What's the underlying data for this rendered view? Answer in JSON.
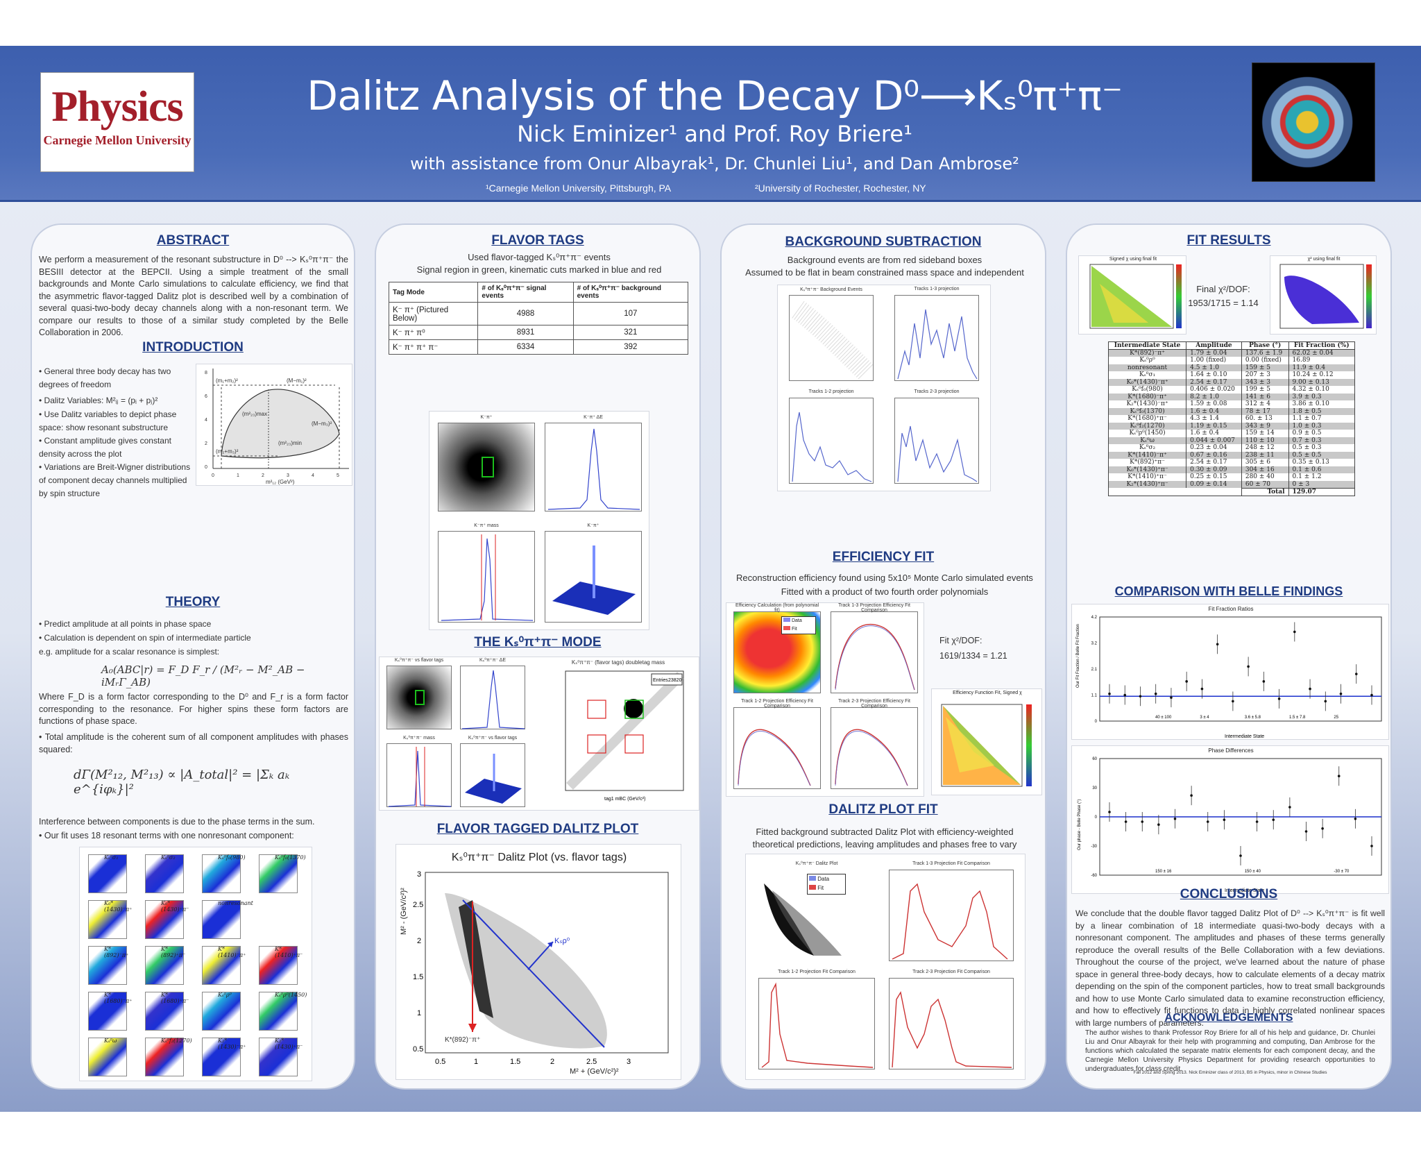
{
  "header": {
    "title": "Dalitz Analysis of the Decay D⁰⟶Kₛ⁰π⁺π⁻",
    "authors": "Nick Eminizer¹ and Prof. Roy Briere¹",
    "assistance": "with assistance from Onur Albayrak¹, Dr. Chunlei Liu¹, and Dan Ambrose²",
    "affil_1": "¹Carnegie Mellon University, Pittsburgh, PA",
    "affil_2": "²University of Rochester, Rochester, NY",
    "logo_word": "Physics",
    "logo_uni": "Carnegie Mellon University"
  },
  "abstract": {
    "title": "ABSTRACT",
    "text": "We perform a measurement of the resonant substructure in D⁰ --> Kₛ⁰π⁺π⁻ the BESIII detector at the BEPCII. Using a simple treatment of the small backgrounds and Monte Carlo simulations to calculate efficiency, we find that the asymmetric flavor-tagged Dalitz plot is described well by a combination of several quasi-two-body decay channels along with a non-resonant term. We compare our results to those of a similar study completed by the Belle Collaboration in 2006."
  },
  "introduction": {
    "title": "INTRODUCTION",
    "bullets": [
      "• General three body decay has two degrees of freedom",
      "• Dalitz Variables: M²ᵢⱼ = (pᵢ + pⱼ)²",
      "• Use Dalitz variables to depict phase space: show resonant substructure",
      "• Constant amplitude gives constant density across the plot",
      "• Variations are Breit-Wigner distributions of component decay channels multiplied by spin structure"
    ],
    "figure_labels": [
      "(m₁+m₂)²",
      "(M−m₁)²",
      "(M−m₃)²",
      "(m₂+m₃)²",
      "(m²₂₃)max",
      "(m²₂₃)min"
    ],
    "figure_xlabel": "m²₁₂ (GeV²)",
    "figure_ylabel": "m²₂₃ (GeV²)",
    "figure_xticks": [
      "0",
      "1",
      "2",
      "3",
      "4",
      "5"
    ],
    "figure_yticks": [
      "0",
      "2",
      "4",
      "6",
      "8"
    ]
  },
  "theory": {
    "title": "THEORY",
    "bullets": [
      "• Predict amplitude at all points in phase space",
      "• Calculation is dependent on spin of intermediate particle"
    ],
    "scalar_note": "e.g. amplitude for a scalar resonance is simplest:",
    "eq1": "A₀(ABC|r) = F_D F_r / (M²ᵣ − M²_AB − iMᵣΓ_AB)",
    "form_factor_note": "Where F_D is a form factor corresponding to the D⁰ and F_r is a form factor corresponding to the resonance. For higher spins these form factors are functions of phase space.",
    "total_note": "• Total amplitude is the coherent sum of all component amplitudes with phases squared:",
    "eq2": "dΓ(M²₁₂, M²₁₃) ∝ |A_total|² = |Σₖ aₖ e^{iφₖ}|²",
    "interference_note": "Interference between components is due to the phase terms in the sum.",
    "fit_note": "• Our fit uses 18 resonant terms with one nonresonant component:",
    "components": [
      "Kₛ⁰σ₁",
      "Kₛ⁰σ₂",
      "Kₛ⁰f₀(980)",
      "Kₛ⁰f₀(1370)",
      "K₀*(1430)⁻π⁺",
      "K₀*(1430)⁺π⁻",
      "nonresonant",
      "",
      "K*(892)⁻π⁺",
      "K*(892)⁺π⁻",
      "K*(1410)⁻π⁺",
      "K*(1410)⁺π⁻",
      "K*(1680)⁻π⁺",
      "K*(1680)⁺π⁻",
      "Kₛ⁰ρ⁰",
      "Kₛ⁰ρ⁰(1450)",
      "Kₛ⁰ω",
      "Kₛ⁰f₂(1270)",
      "K₂*(1430)⁻π⁺",
      "K₂*(1430)⁺π⁻"
    ]
  },
  "flavor_tags": {
    "title": "FLAVOR TAGS",
    "line1": "Used flavor-tagged Kₛ⁰π⁺π⁻ events",
    "line2": "Signal region in green, kinematic cuts marked in blue and red",
    "table_headers": [
      "Tag Mode",
      "# of Kₛ⁰π⁺π⁻ signal events",
      "# of Kₛ⁰π⁺π⁻ background events"
    ],
    "table_rows": [
      [
        "K⁻ π⁺ (Pictured Below)",
        "4988",
        "107"
      ],
      [
        "K⁻ π⁺ π⁰",
        "8931",
        "321"
      ],
      [
        "K⁻ π⁺ π⁺ π⁻",
        "6334",
        "392"
      ]
    ],
    "plot_titles": [
      "K⁻π⁺",
      "K⁻π⁺ ΔE",
      "K⁻π⁺ mass",
      "K⁻π⁺"
    ]
  },
  "ks_mode": {
    "title": "THE Kₛ⁰π⁺π⁻ MODE",
    "plot_titles": [
      "Kₛ⁰π⁺π⁻ vs flavor tags",
      "Kₛ⁰π⁺π⁻ ΔE",
      "Kₛ⁰π⁺π⁻ mass",
      "Kₛ⁰π⁺π⁻ vs flavor tags"
    ],
    "doubletag_title": "Kₛ⁰π⁺π⁻ (flavor tags) doubletag mass",
    "doubletag_xlabel": "tag1 mBC (GeV/c²)",
    "doubletag_ylabel": "tag2 mBC (GeV/c²)",
    "entries_label": "Entries",
    "entries_value": "23820",
    "xticks": [
      "1.83",
      "1.84",
      "1.85",
      "1.86",
      "1.87",
      "1.88",
      "1.89"
    ],
    "yticks": [
      "1.83",
      "1.84",
      "1.85",
      "1.86",
      "1.87",
      "1.88",
      "1.89"
    ]
  },
  "flavor_dalitz": {
    "title": "FLAVOR TAGGED DALITZ PLOT",
    "plot_title": "Kₛ⁰π⁺π⁻ Dalitz Plot (vs. flavor tags)",
    "xlabel": "M² + (GeV/c²)²",
    "ylabel": "M² - (GeV/c²)²",
    "xticks": [
      "0.5",
      "1",
      "1.5",
      "2",
      "2.5",
      "3"
    ],
    "yticks": [
      "0.5",
      "1",
      "1.5",
      "2",
      "2.5",
      "3"
    ],
    "label_ksrho": "Kₛρ⁰",
    "label_kstar": "K*(892)⁻π⁺"
  },
  "background": {
    "title": "BACKGROUND SUBTRACTION",
    "line1": "Background events are from red sideband boxes",
    "line2": "Assumed to be flat in beam constrained mass space and independent",
    "plot_titles": [
      "Kₛ⁰π⁺π⁻ Background Events",
      "Tracks 1-3 projection",
      "Tracks 1-2 projection",
      "Tracks 2-3 projection"
    ]
  },
  "efficiency": {
    "title": "EFFICIENCY FIT",
    "line1": "Reconstruction efficiency found using 5x10⁵ Monte Carlo simulated events",
    "line2": "Fitted with a product of two fourth order polynomials",
    "fit_chi": "Fit χ²/DOF:",
    "fit_value": "1619/1334 = 1.21",
    "plot_titles": [
      "Efficiency Calculation (from polynomial fit)",
      "Track 1-3 Projection Efficiency Fit Comparison",
      "Track 1-2 Projection Efficiency Fit Comparison",
      "Track 2-3 Projection Efficiency Fit Comparison",
      "Efficiency Function Fit, Signed χ"
    ],
    "legend": [
      "Data",
      "Fit"
    ]
  },
  "dalitz_fit": {
    "title": "DALITZ PLOT FIT",
    "line1": "Fitted background subtracted Dalitz Plot with efficiency-weighted",
    "line2": "theoretical predictions, leaving amplitudes and phases free to vary",
    "plot_titles": [
      "Kₛ⁰π⁺π⁻ Dalitz Plot",
      "Track 1-3 Projection Fit Comparison",
      "Track 1-2 Projection Fit Comparison",
      "Track 2-3 Projection Fit Comparison"
    ],
    "legend": [
      "Data",
      "Fit"
    ]
  },
  "fit_results": {
    "title": "FIT RESULTS",
    "plot_titles": [
      "Signed χ using final fit",
      "χ² using final fit"
    ],
    "chi_label": "Final χ²/DOF:",
    "chi_value": "1953/1715 = 1.14",
    "table_headers": [
      "Intermediate State",
      "Amplitude",
      "Phase (°)",
      "Fit Fraction (%)"
    ],
    "table_rows": [
      [
        "K*(892)⁻π⁺",
        "1.79 ± 0.04",
        "137.6 ± 1.9",
        "62.02 ± 0.04"
      ],
      [
        "Kₛ⁰ρ⁰",
        "1.00 (fixed)",
        "0.00 (fixed)",
        "16.89"
      ],
      [
        "nonresonant",
        "4.5 ± 1.0",
        "159 ± 5",
        "11.9 ± 0.4"
      ],
      [
        "Kₛ⁰σ₁",
        "1.64 ± 0.10",
        "207 ± 3",
        "10.24 ± 0.12"
      ],
      [
        "K₀*(1430)⁻π⁺",
        "2.54 ± 0.17",
        "343 ± 3",
        "9.00 ± 0.13"
      ],
      [
        "Kₛ⁰f₀(980)",
        "0.406 ± 0.020",
        "199 ± 5",
        "4.32 ± 0.10"
      ],
      [
        "K*(1680)⁻π⁺",
        "8.2 ± 1.0",
        "141 ± 6",
        "3.9 ± 0.3"
      ],
      [
        "K₂*(1430)⁻π⁺",
        "1.59 ± 0.08",
        "312 ± 4",
        "3.86 ± 0.10"
      ],
      [
        "Kₛ⁰f₀(1370)",
        "1.6 ± 0.4",
        "78 ± 17",
        "1.8 ± 0.5"
      ],
      [
        "K*(1680)⁺π⁻",
        "4.3 ± 1.4",
        "60. ± 13",
        "1.1 ± 0.7"
      ],
      [
        "Kₛ⁰f₂(1270)",
        "1.19 ± 0.15",
        "343 ± 9",
        "1.0 ± 0.3"
      ],
      [
        "Kₛ⁰ρ⁰(1450)",
        "1.6 ± 0.4",
        "159 ± 14",
        "0.9 ± 0.5"
      ],
      [
        "Kₛ⁰ω",
        "0.044 ± 0.007",
        "110 ± 10",
        "0.7 ± 0.3"
      ],
      [
        "Kₛ⁰σ₂",
        "0.23 ± 0.04",
        "248 ± 12",
        "0.5 ± 0.3"
      ],
      [
        "K*(1410)⁻π⁺",
        "0.67 ± 0.16",
        "238 ± 11",
        "0.5 ± 0.5"
      ],
      [
        "K*(892)⁺π⁻",
        "2.54 ± 0.17",
        "305 ± 6",
        "0.35 ± 0.13"
      ],
      [
        "K₀*(1430)⁺π⁻",
        "0.30 ± 0.09",
        "304 ± 16",
        "0.1 ± 0.6"
      ],
      [
        "K*(1410)⁺π⁻",
        "0.25 ± 0.15",
        "280 ± 40",
        "0.1 ± 1.2"
      ],
      [
        "K₂*(1430)⁺π⁻",
        "0.09 ± 0.14",
        "60 ± 70",
        "0 ± 3"
      ]
    ],
    "total_label": "Total",
    "total_value": "129.07"
  },
  "belle": {
    "title": "COMPARISON WITH BELLE FINDINGS",
    "chart1_title": "Fit Fraction Ratios",
    "chart1_ylabel": "Our Fit Fraction / Belle Fit Fraction",
    "chart1_xlabel": "Intermediate State",
    "chart2_title": "Phase Differences",
    "chart2_ylabel": "Our phase - Belle Phase (°)",
    "chart2_xlabel": "Intermediate State"
  },
  "conclusions": {
    "title": "CONCLUSIONS",
    "text": "We conclude that the double flavor tagged Dalitz Plot of D⁰ --> Kₛ⁰π⁺π⁻ is fit well by a linear combination of 18 intermediate quasi-two-body decays with a nonresonant component. The amplitudes and phases of these terms generally reproduce the overall results of the Belle Collaboration with a few deviations. Throughout the course of the project, we've learned about the nature of phase space in general three-body decays, how to calculate elements of a decay matrix depending on the spin of the component particles, how to treat small backgrounds and how to use Monte Carlo simulated data to examine reconstruction efficiency, and how to effectively fit functions to data in highly correlated nonlinear spaces with large numbers of parameters."
  },
  "acknowledgements": {
    "title": "ACKNOWLEDGEMENTS",
    "text": "The author wishes to thank Professor Roy Briere for all of his help and guidance, Dr. Chunlei Liu and Onur Albayrak for their help with programming and computing, Dan Ambrose for the functions which calculated the separate matrix elements for each component decay, and the Carnegie Mellon University Physics Department for providing research opportunities to undergraduates for class credit.",
    "footnote": "Fall 2012 and Spring 2013. Nick Eminizer class of 2013, BS in Physics, minor in Chinese Studies"
  },
  "chart_data": [
    {
      "type": "scatter",
      "title": "Fit Fraction Ratios",
      "xlabel": "Intermediate State",
      "ylabel": "Our Fit Fraction / Belle Fit Fraction",
      "ylim": [
        0,
        4.2
      ],
      "reference_line": 1,
      "x": [
        1,
        2,
        3,
        4,
        5,
        6,
        7,
        8,
        9,
        10,
        11,
        12,
        13,
        14,
        15,
        16,
        17,
        18
      ],
      "values": [
        1.1,
        1.05,
        1.0,
        1.1,
        0.95,
        1.6,
        1.3,
        3.1,
        0.8,
        2.2,
        1.6,
        0.9,
        3.6,
        1.3,
        0.8,
        1.1,
        1.9,
        1.05
      ],
      "annotations": [
        "40 ± 100",
        "3 ± 4",
        "3.6 ± 5.8",
        "1.5 ± 7.8",
        "25"
      ]
    },
    {
      "type": "scatter",
      "title": "Phase Differences",
      "xlabel": "Intermediate State",
      "ylabel": "Our phase - Belle Phase (°)",
      "ylim": [
        -60,
        60
      ],
      "reference_line": 0,
      "x": [
        1,
        2,
        3,
        4,
        5,
        6,
        7,
        8,
        9,
        10,
        11,
        12,
        13,
        14,
        15,
        16,
        17
      ],
      "values": [
        5,
        -5,
        -5,
        -8,
        -2,
        22,
        -5,
        -3,
        -40,
        -5,
        -3,
        10,
        -15,
        -12,
        42,
        -2,
        -30
      ],
      "annotations": [
        "150 ± 16",
        "150 ± 40",
        "-30 ± 70"
      ]
    }
  ]
}
